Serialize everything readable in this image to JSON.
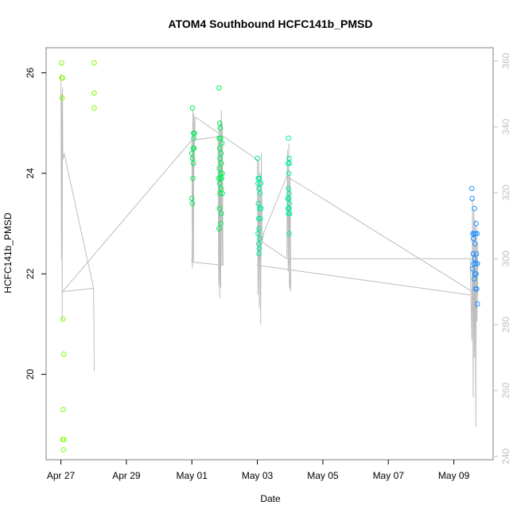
{
  "chart_data": {
    "type": "scatter",
    "title": "ATOM4 Southbound HCFC141b_PMSD",
    "xlabel": "Date",
    "ylabel": "HCFC141b_PMSD",
    "x_tick_labels": [
      "Apr 27",
      "Apr 29",
      "May 01",
      "May 03",
      "May 05",
      "May 07",
      "May 09"
    ],
    "x_ticks_days": [
      0,
      2,
      4,
      6,
      8,
      10,
      12
    ],
    "xlim_days": [
      -0.45,
      13.2
    ],
    "ylim": [
      18.3,
      26.5
    ],
    "y_ticks": [
      20,
      22,
      24,
      26
    ],
    "y_right_ticks": [
      240,
      260,
      280,
      300,
      320,
      340,
      360
    ],
    "y_right_lim": [
      239,
      364
    ],
    "grid": false,
    "legend": "none",
    "colors": {
      "line": "#bdbdbd",
      "right_axis": "#bfbfbf",
      "box": "#808080"
    },
    "series": [
      {
        "color": "#7fff00",
        "points": [
          [
            0.02,
            26.2
          ],
          [
            0.03,
            25.9
          ],
          [
            0.05,
            25.9
          ],
          [
            0.04,
            25.5
          ],
          [
            0.06,
            21.1
          ],
          [
            0.09,
            20.4
          ],
          [
            0.07,
            19.3
          ],
          [
            0.06,
            18.7
          ],
          [
            0.09,
            18.7
          ],
          [
            0.08,
            18.5
          ],
          [
            1.02,
            26.2
          ],
          [
            1.02,
            25.6
          ],
          [
            1.02,
            25.3
          ]
        ]
      },
      {
        "color": "#00ee55",
        "points": [
          [
            4.02,
            25.3
          ],
          [
            4.05,
            24.8
          ],
          [
            4.08,
            24.8
          ],
          [
            4.06,
            24.7
          ],
          [
            4.04,
            24.5
          ],
          [
            4.07,
            24.5
          ],
          [
            4.0,
            24.4
          ],
          [
            4.02,
            24.3
          ],
          [
            4.05,
            24.2
          ],
          [
            4.03,
            23.9
          ],
          [
            4.0,
            23.5
          ],
          [
            4.02,
            23.4
          ],
          [
            4.83,
            25.7
          ],
          [
            4.85,
            25.0
          ],
          [
            4.87,
            24.9
          ],
          [
            4.83,
            24.7
          ],
          [
            4.88,
            24.7
          ],
          [
            4.92,
            24.6
          ],
          [
            4.85,
            24.5
          ],
          [
            4.89,
            24.4
          ],
          [
            4.86,
            24.3
          ],
          [
            4.9,
            24.2
          ],
          [
            4.84,
            24.1
          ],
          [
            4.88,
            24.0
          ],
          [
            4.93,
            24.0
          ],
          [
            4.82,
            23.9
          ],
          [
            4.87,
            23.9
          ],
          [
            4.91,
            23.9
          ],
          [
            4.85,
            23.8
          ],
          [
            4.89,
            23.7
          ],
          [
            4.86,
            23.6
          ],
          [
            4.93,
            23.6
          ],
          [
            4.84,
            23.3
          ],
          [
            4.9,
            23.2
          ],
          [
            4.88,
            23.0
          ],
          [
            4.83,
            22.9
          ]
        ]
      },
      {
        "color": "#00ee99",
        "points": [
          [
            6.0,
            24.3
          ],
          [
            6.03,
            23.9
          ],
          [
            6.06,
            23.9
          ],
          [
            6.02,
            23.8
          ],
          [
            6.1,
            23.8
          ],
          [
            6.05,
            23.7
          ],
          [
            6.08,
            23.6
          ],
          [
            6.03,
            23.4
          ],
          [
            6.07,
            23.3
          ],
          [
            6.11,
            23.3
          ],
          [
            6.04,
            23.1
          ],
          [
            6.09,
            23.1
          ],
          [
            6.05,
            22.9
          ],
          [
            6.02,
            22.8
          ],
          [
            6.07,
            22.7
          ],
          [
            6.04,
            22.6
          ],
          [
            6.06,
            22.5
          ],
          [
            6.05,
            22.4
          ],
          [
            6.95,
            24.7
          ],
          [
            6.97,
            24.3
          ],
          [
            6.94,
            24.2
          ],
          [
            6.98,
            24.2
          ],
          [
            6.96,
            24.0
          ],
          [
            6.95,
            23.7
          ],
          [
            6.97,
            23.6
          ],
          [
            6.93,
            23.5
          ],
          [
            6.96,
            23.5
          ],
          [
            6.98,
            23.4
          ],
          [
            6.94,
            23.3
          ],
          [
            6.97,
            23.3
          ],
          [
            6.95,
            23.2
          ],
          [
            6.99,
            23.2
          ],
          [
            6.97,
            22.8
          ]
        ]
      },
      {
        "color": "#1e90ff",
        "points": [
          [
            12.55,
            23.7
          ],
          [
            12.56,
            23.5
          ],
          [
            12.63,
            23.3
          ],
          [
            12.68,
            23.0
          ],
          [
            12.58,
            22.8
          ],
          [
            12.62,
            22.8
          ],
          [
            12.66,
            22.8
          ],
          [
            12.71,
            22.8
          ],
          [
            12.6,
            22.7
          ],
          [
            12.65,
            22.6
          ],
          [
            12.59,
            22.4
          ],
          [
            12.69,
            22.4
          ],
          [
            12.63,
            22.3
          ],
          [
            12.61,
            22.2
          ],
          [
            12.67,
            22.2
          ],
          [
            12.72,
            22.2
          ],
          [
            12.57,
            22.1
          ],
          [
            12.64,
            22.0
          ],
          [
            12.68,
            22.0
          ],
          [
            12.62,
            21.9
          ],
          [
            12.66,
            21.7
          ],
          [
            12.7,
            21.7
          ],
          [
            12.72,
            21.4
          ]
        ]
      }
    ],
    "secondary_line_right_axis": [
      [
        0.0,
        356
      ],
      [
        0.02,
        300
      ],
      [
        0.03,
        350
      ],
      [
        0.04,
        281
      ],
      [
        0.05,
        352
      ],
      [
        0.06,
        330
      ],
      [
        0.1,
        332
      ],
      [
        1.0,
        291
      ],
      [
        1.02,
        266
      ],
      [
        1.0,
        291
      ],
      [
        0.05,
        290
      ],
      [
        4.0,
        336
      ],
      [
        4.02,
        297
      ],
      [
        4.03,
        345
      ],
      [
        4.05,
        299
      ],
      [
        4.06,
        344
      ],
      [
        4.08,
        336
      ],
      [
        4.8,
        337
      ],
      [
        4.82,
        292
      ],
      [
        4.83,
        340
      ],
      [
        4.85,
        288
      ],
      [
        4.87,
        342
      ],
      [
        4.88,
        291
      ],
      [
        4.9,
        345
      ],
      [
        4.92,
        298
      ],
      [
        4.93,
        341
      ],
      [
        4.95,
        298
      ],
      [
        4.0,
        299
      ],
      [
        4.1,
        343
      ],
      [
        6.0,
        330
      ],
      [
        6.02,
        289
      ],
      [
        6.04,
        330
      ],
      [
        6.06,
        285
      ],
      [
        6.08,
        326
      ],
      [
        6.1,
        280
      ],
      [
        6.12,
        332
      ],
      [
        6.15,
        305
      ],
      [
        6.9,
        300
      ],
      [
        6.92,
        333
      ],
      [
        6.94,
        296
      ],
      [
        6.96,
        335
      ],
      [
        6.98,
        291
      ],
      [
        7.0,
        325
      ],
      [
        7.02,
        290
      ],
      [
        6.96,
        300
      ],
      [
        12.5,
        300
      ],
      [
        12.55,
        275
      ],
      [
        12.57,
        318
      ],
      [
        12.59,
        258
      ],
      [
        12.61,
        315
      ],
      [
        12.63,
        270
      ],
      [
        12.65,
        312
      ],
      [
        12.67,
        249
      ],
      [
        12.69,
        310
      ],
      [
        12.71,
        281
      ],
      [
        12.72,
        305
      ],
      [
        12.73,
        289
      ],
      [
        6.9,
        325
      ],
      [
        6.2,
        308
      ],
      [
        6.0,
        298
      ],
      [
        12.5,
        289
      ]
    ]
  }
}
